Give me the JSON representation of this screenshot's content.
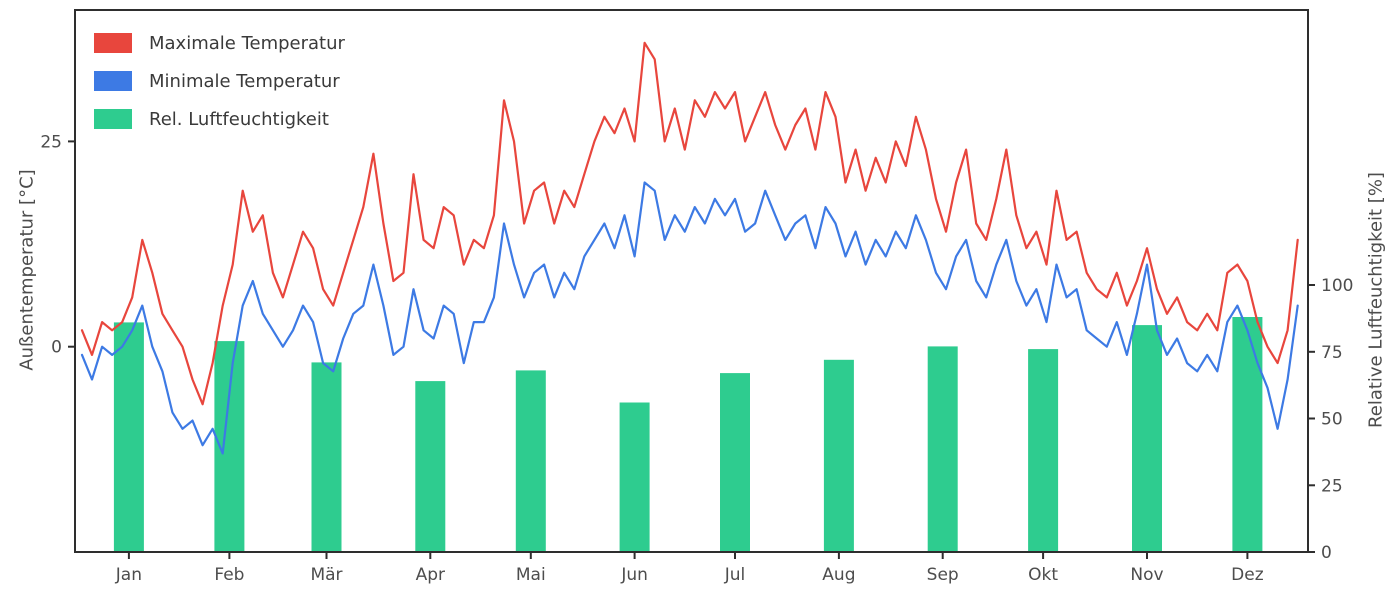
{
  "figure": {
    "background": "#ffffff",
    "axis_color": "#2e2e2e",
    "tick_label_color": "#4d4d4d"
  },
  "chart_data": {
    "type": "line+bar",
    "title": "",
    "grid": false,
    "legend_position": "upper left",
    "sample_interval_days": 3,
    "x_axis": {
      "unit": "day of year",
      "range": [
        1,
        365
      ],
      "tick_labels": [
        "Jan",
        "Feb",
        "Mär",
        "Apr",
        "Mai",
        "Jun",
        "Jul",
        "Aug",
        "Sep",
        "Okt",
        "Nov",
        "Dez"
      ],
      "tick_positions_day": [
        15,
        45,
        74,
        105,
        135,
        166,
        196,
        227,
        258,
        288,
        319,
        349
      ]
    },
    "left_axis": {
      "label": "Außentemperatur [°C]",
      "ticks": [
        25,
        0
      ],
      "ylim": [
        -25,
        41
      ]
    },
    "right_axis": {
      "label": "Relative Luftfeuchtigkeit [%]",
      "ticks": [
        100,
        75,
        50,
        25,
        0
      ],
      "ylim": [
        0,
        203
      ]
    },
    "series": [
      {
        "name": "Maximale Temperatur",
        "type": "line",
        "axis": "left",
        "color": "#e8463d",
        "values": [
          2,
          -1,
          3,
          2,
          3,
          6,
          13,
          9,
          4,
          2,
          0,
          -4,
          -7,
          -2,
          5,
          10,
          19,
          14,
          16,
          9,
          6,
          10,
          14,
          12,
          7,
          5,
          9,
          13,
          17,
          23.5,
          15,
          8,
          9,
          21,
          13,
          12,
          17,
          16,
          10,
          13,
          12,
          16,
          30,
          25,
          15,
          19,
          20,
          15,
          19,
          17,
          21,
          25,
          28,
          26,
          29,
          25,
          37,
          35,
          25,
          29,
          24,
          30,
          28,
          31,
          29,
          31,
          25,
          28,
          31,
          27,
          24,
          27,
          29,
          24,
          31,
          28,
          20,
          24,
          19,
          23,
          20,
          25,
          22,
          28,
          24,
          18,
          14,
          20,
          24,
          15,
          13,
          18,
          24,
          16,
          12,
          14,
          10,
          19,
          13,
          14,
          9,
          7,
          6,
          9,
          5,
          8,
          12,
          7,
          4,
          6,
          3,
          2,
          4,
          2,
          9,
          10,
          8,
          3,
          0,
          -2,
          2,
          13
        ]
      },
      {
        "name": "Minimale Temperatur",
        "type": "line",
        "axis": "left",
        "color": "#3d7ae4",
        "values": [
          -1,
          -4,
          0,
          -1,
          0,
          2,
          5,
          0,
          -3,
          -8,
          -10,
          -9,
          -12,
          -10,
          -13,
          -2,
          5,
          8,
          4,
          2,
          0,
          2,
          5,
          3,
          -2,
          -3,
          1,
          4,
          5,
          10,
          5,
          -1,
          0,
          7,
          2,
          1,
          5,
          4,
          -2,
          3,
          3,
          6,
          15,
          10,
          6,
          9,
          10,
          6,
          9,
          7,
          11,
          13,
          15,
          12,
          16,
          11,
          20,
          19,
          13,
          16,
          14,
          17,
          15,
          18,
          16,
          18,
          14,
          15,
          19,
          16,
          13,
          15,
          16,
          12,
          17,
          15,
          11,
          14,
          10,
          13,
          11,
          14,
          12,
          16,
          13,
          9,
          7,
          11,
          13,
          8,
          6,
          10,
          13,
          8,
          5,
          7,
          3,
          10,
          6,
          7,
          2,
          1,
          0,
          3,
          -1,
          4,
          10,
          2,
          -1,
          1,
          -2,
          -3,
          -1,
          -3,
          3,
          5,
          2,
          -2,
          -5,
          -10,
          -4,
          5
        ]
      },
      {
        "name": "Rel. Luftfeuchtigkeit",
        "type": "bar",
        "axis": "right",
        "color": "#2ecc8f",
        "values": [
          86,
          79,
          71,
          64,
          68,
          56,
          67,
          72,
          77,
          76,
          85,
          88
        ]
      }
    ]
  }
}
